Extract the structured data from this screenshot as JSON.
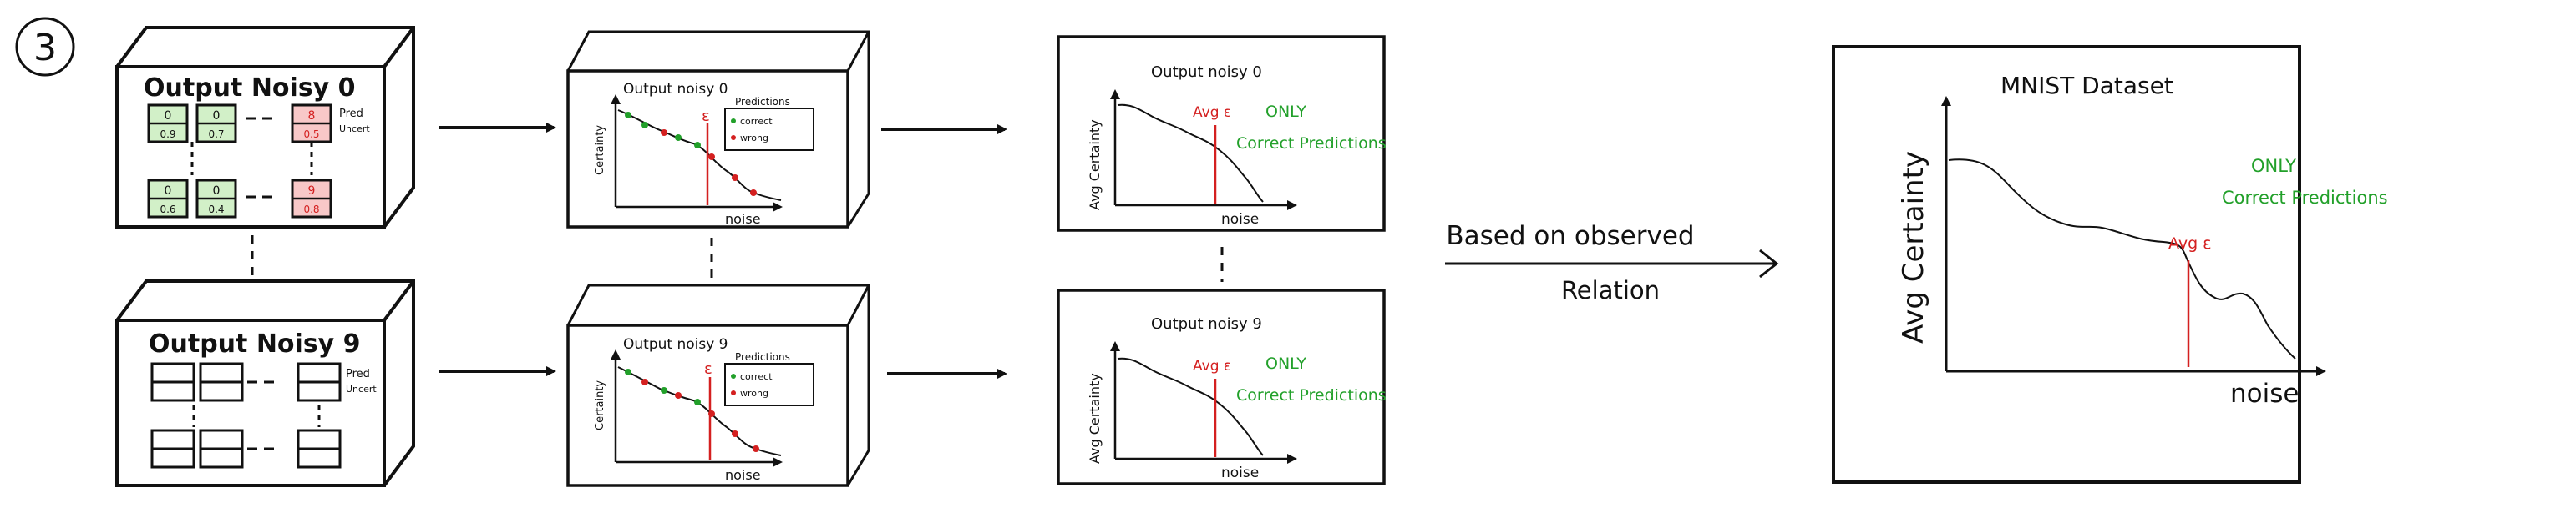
{
  "step_number": "3",
  "colors": {
    "ink": "#111111",
    "red": "#d42020",
    "green": "#22a02a",
    "cell_green": "#d2f0c8",
    "cell_red": "#f8c8c8"
  },
  "box_top_left": {
    "title": "Output Noisy 0",
    "row1": [
      {
        "pred": "0",
        "uncert": "0.9",
        "tone": "green"
      },
      {
        "pred": "0",
        "uncert": "0.7",
        "tone": "green"
      },
      {
        "pred": "8",
        "uncert": "0.5",
        "tone": "red"
      }
    ],
    "row2": [
      {
        "pred": "0",
        "uncert": "0.6",
        "tone": "green"
      },
      {
        "pred": "0",
        "uncert": "0.4",
        "tone": "green"
      },
      {
        "pred": "9",
        "uncert": "0.8",
        "tone": "red"
      }
    ],
    "label_pred": "Pred",
    "label_uncert": "Uncert"
  },
  "box_bottom_left": {
    "title": "Output Noisy 9",
    "label_pred": "Pred",
    "label_uncert": "Uncert"
  },
  "plot_mid_top": {
    "title": "Output noisy 0",
    "ylabel": "Certainty",
    "xlabel": "noise",
    "epsilon": "ε",
    "legend_title": "Predictions",
    "legend_correct": "correct",
    "legend_wrong": "wrong"
  },
  "plot_mid_bottom": {
    "title": "Output noisy 9",
    "ylabel": "Certainty",
    "xlabel": "noise",
    "epsilon": "ε",
    "legend_title": "Predictions",
    "legend_correct": "correct",
    "legend_wrong": "wrong"
  },
  "plot_right_top": {
    "title": "Output noisy 0",
    "ylabel": "Avg Certainty",
    "xlabel": "noise",
    "avg_label": "Avg ε",
    "only": "ONLY",
    "correct": "Correct Predictions"
  },
  "plot_right_bottom": {
    "title": "Output noisy 9",
    "ylabel": "Avg Certainty",
    "xlabel": "noise",
    "avg_label": "Avg ε",
    "only": "ONLY",
    "correct": "Correct Predictions"
  },
  "relation": {
    "line1": "Based on observed",
    "line2": "Relation"
  },
  "final_plot": {
    "title": "MNIST Dataset",
    "ylabel": "Avg Certainty",
    "xlabel": "noise",
    "avg_label": "Avg ε",
    "only": "ONLY",
    "correct": "Correct Predictions"
  }
}
